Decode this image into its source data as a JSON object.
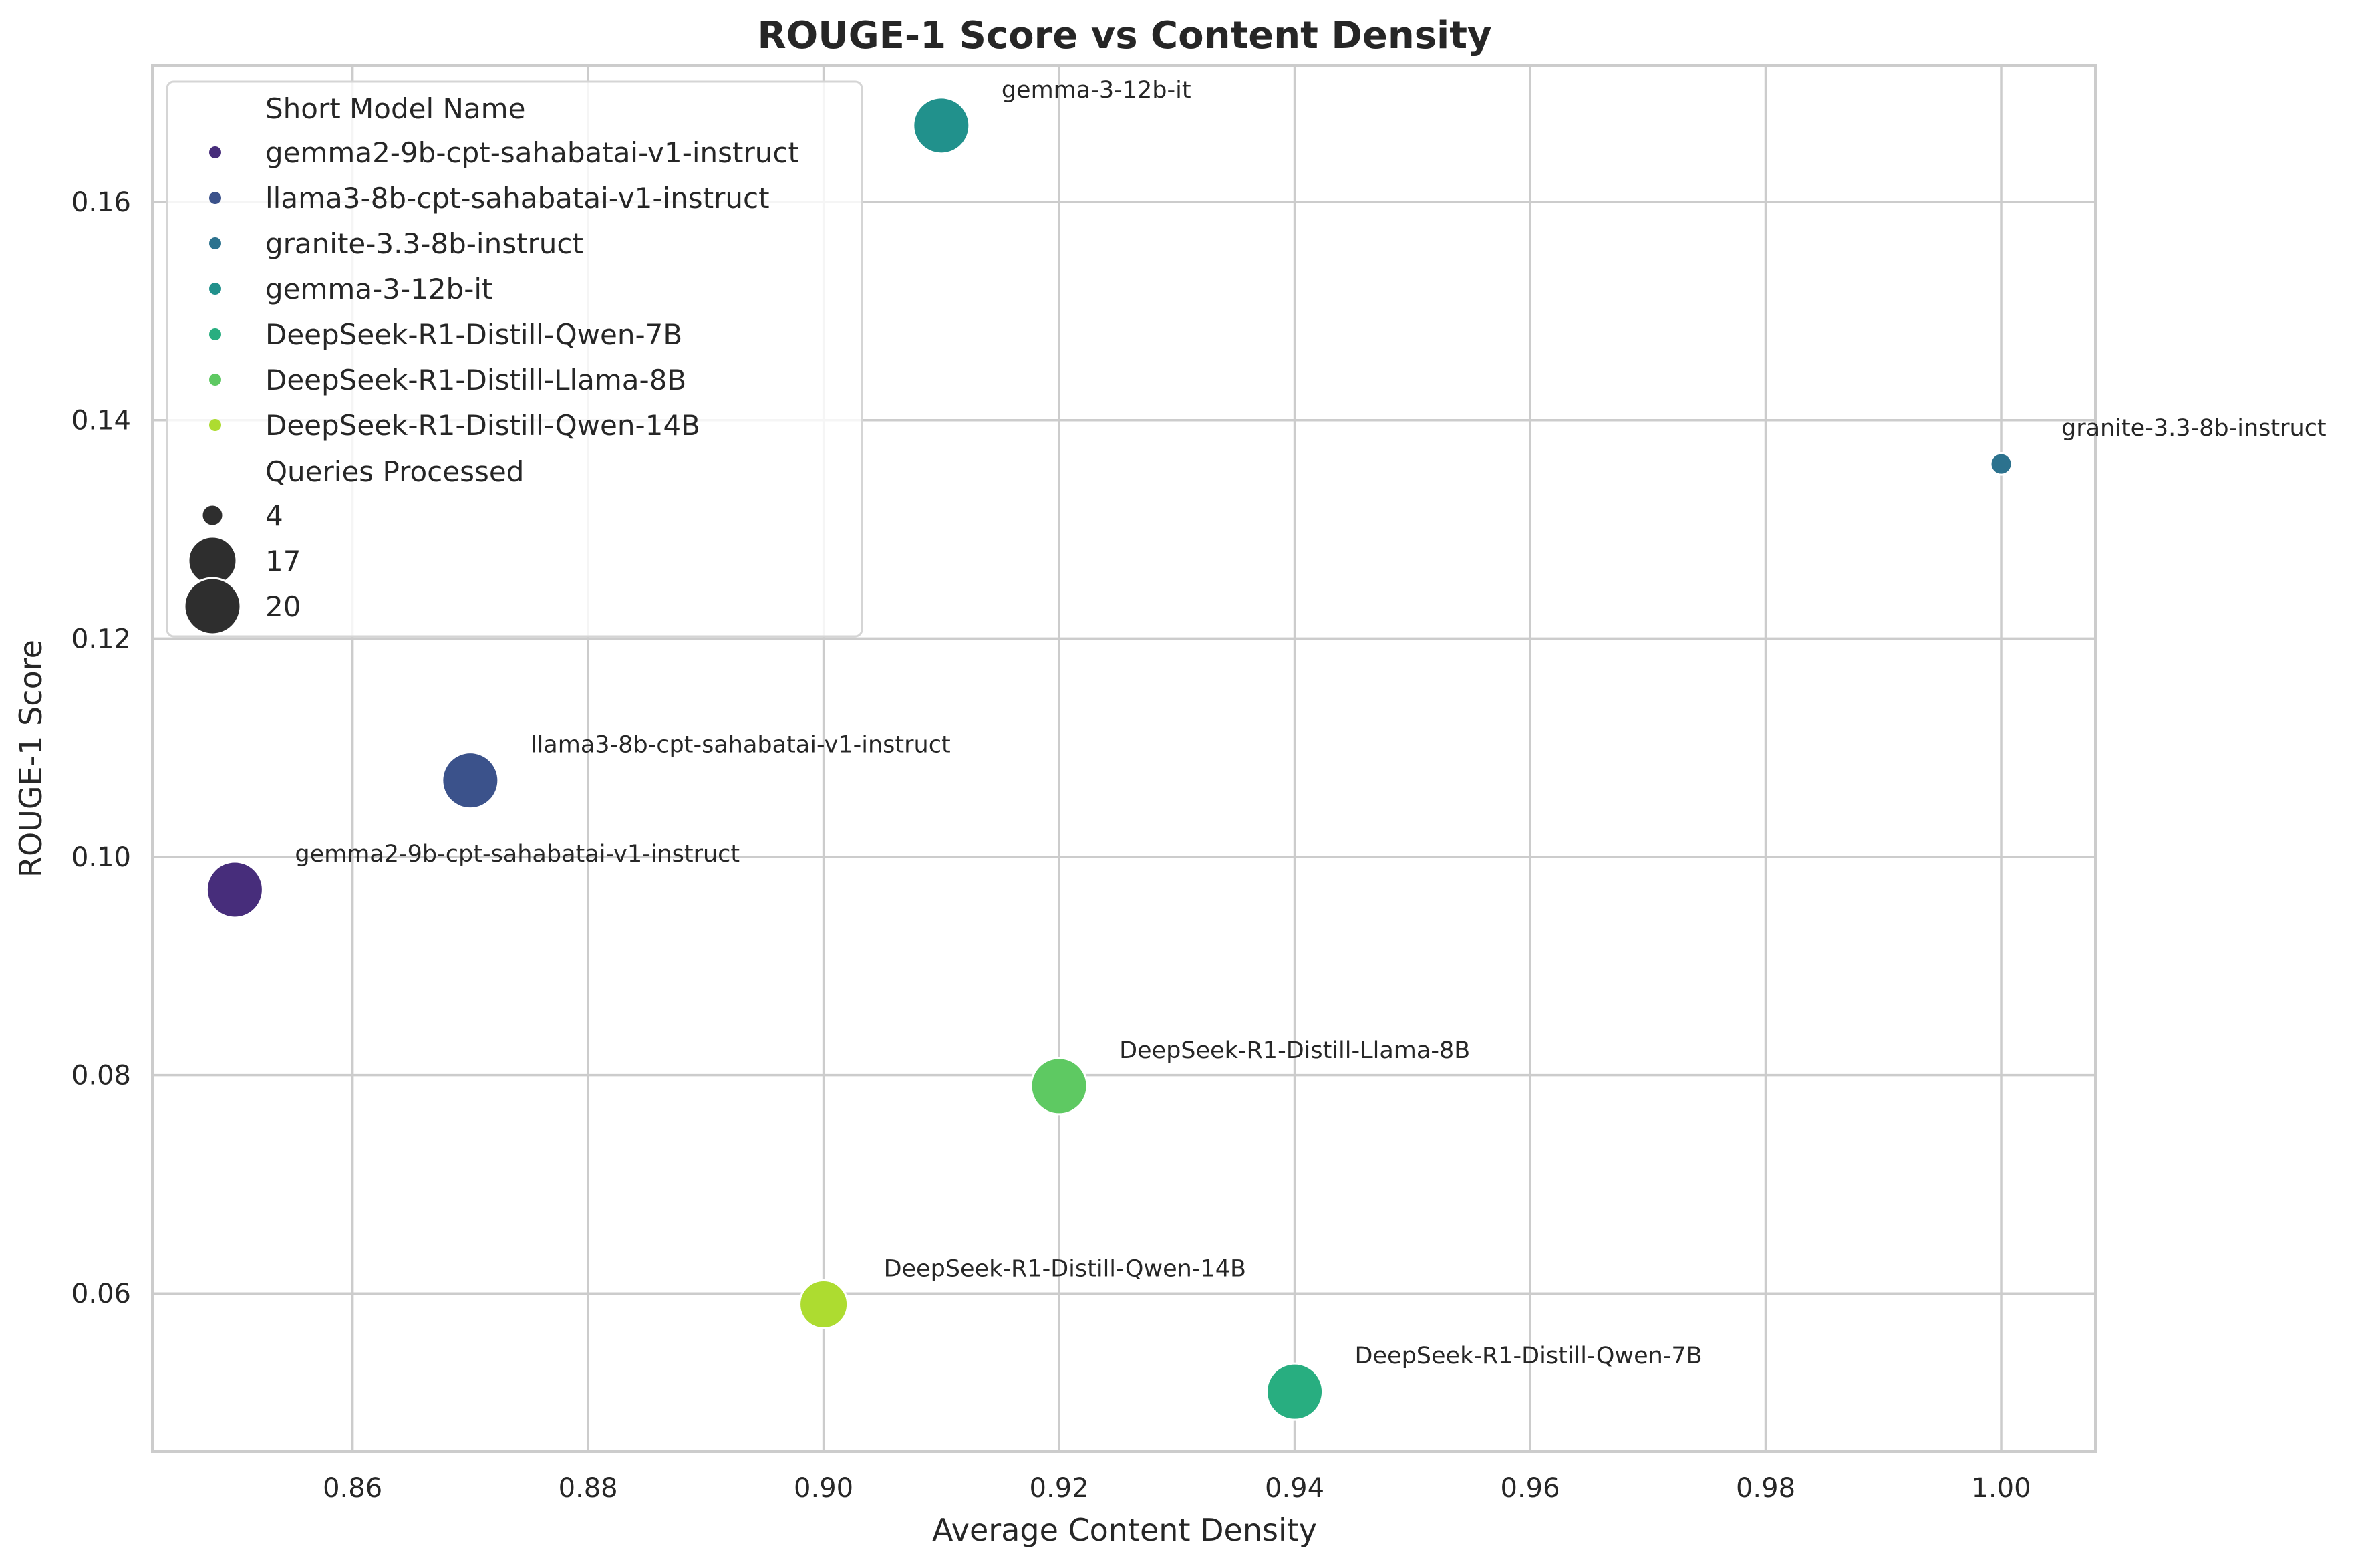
{
  "chart_data": {
    "type": "scatter",
    "title": "ROUGE-1 Score vs Content Density",
    "xlabel": "Average Content Density",
    "ylabel": "ROUGE-1 Score",
    "xlim": [
      0.843,
      1.008
    ],
    "ylim": [
      0.0455,
      0.1725
    ],
    "x_ticks": [
      0.86,
      0.88,
      0.9,
      0.92,
      0.94,
      0.96,
      0.98,
      1.0
    ],
    "x_tick_labels": [
      "0.86",
      "0.88",
      "0.90",
      "0.92",
      "0.94",
      "0.96",
      "0.98",
      "1.00"
    ],
    "y_ticks": [
      0.06,
      0.08,
      0.1,
      0.12,
      0.14,
      0.16
    ],
    "y_tick_labels": [
      "0.06",
      "0.08",
      "0.10",
      "0.12",
      "0.14",
      "0.16"
    ],
    "grid": true,
    "legend_position": "top-left",
    "legend": {
      "hue_title": "Short Model Name",
      "size_title": "Queries Processed",
      "size_entries": [
        {
          "label": "4",
          "value": 4
        },
        {
          "label": "17",
          "value": 17
        },
        {
          "label": "20",
          "value": 20
        }
      ]
    },
    "series": [
      {
        "name": "gemma2-9b-cpt-sahabatai-v1-instruct",
        "color": "#472d7b",
        "x": 0.85,
        "y": 0.097,
        "queries": 20
      },
      {
        "name": "llama3-8b-cpt-sahabatai-v1-instruct",
        "color": "#3b528b",
        "x": 0.87,
        "y": 0.107,
        "queries": 20
      },
      {
        "name": "granite-3.3-8b-instruct",
        "color": "#2c728e",
        "x": 1.0,
        "y": 0.136,
        "queries": 4
      },
      {
        "name": "gemma-3-12b-it",
        "color": "#21918c",
        "x": 0.91,
        "y": 0.167,
        "queries": 20
      },
      {
        "name": "DeepSeek-R1-Distill-Qwen-7B",
        "color": "#28ae80",
        "x": 0.94,
        "y": 0.051,
        "queries": 20
      },
      {
        "name": "DeepSeek-R1-Distill-Llama-8B",
        "color": "#5ec962",
        "x": 0.92,
        "y": 0.079,
        "queries": 20
      },
      {
        "name": "DeepSeek-R1-Distill-Qwen-14B",
        "color": "#addc30",
        "x": 0.9,
        "y": 0.059,
        "queries": 17
      }
    ]
  }
}
